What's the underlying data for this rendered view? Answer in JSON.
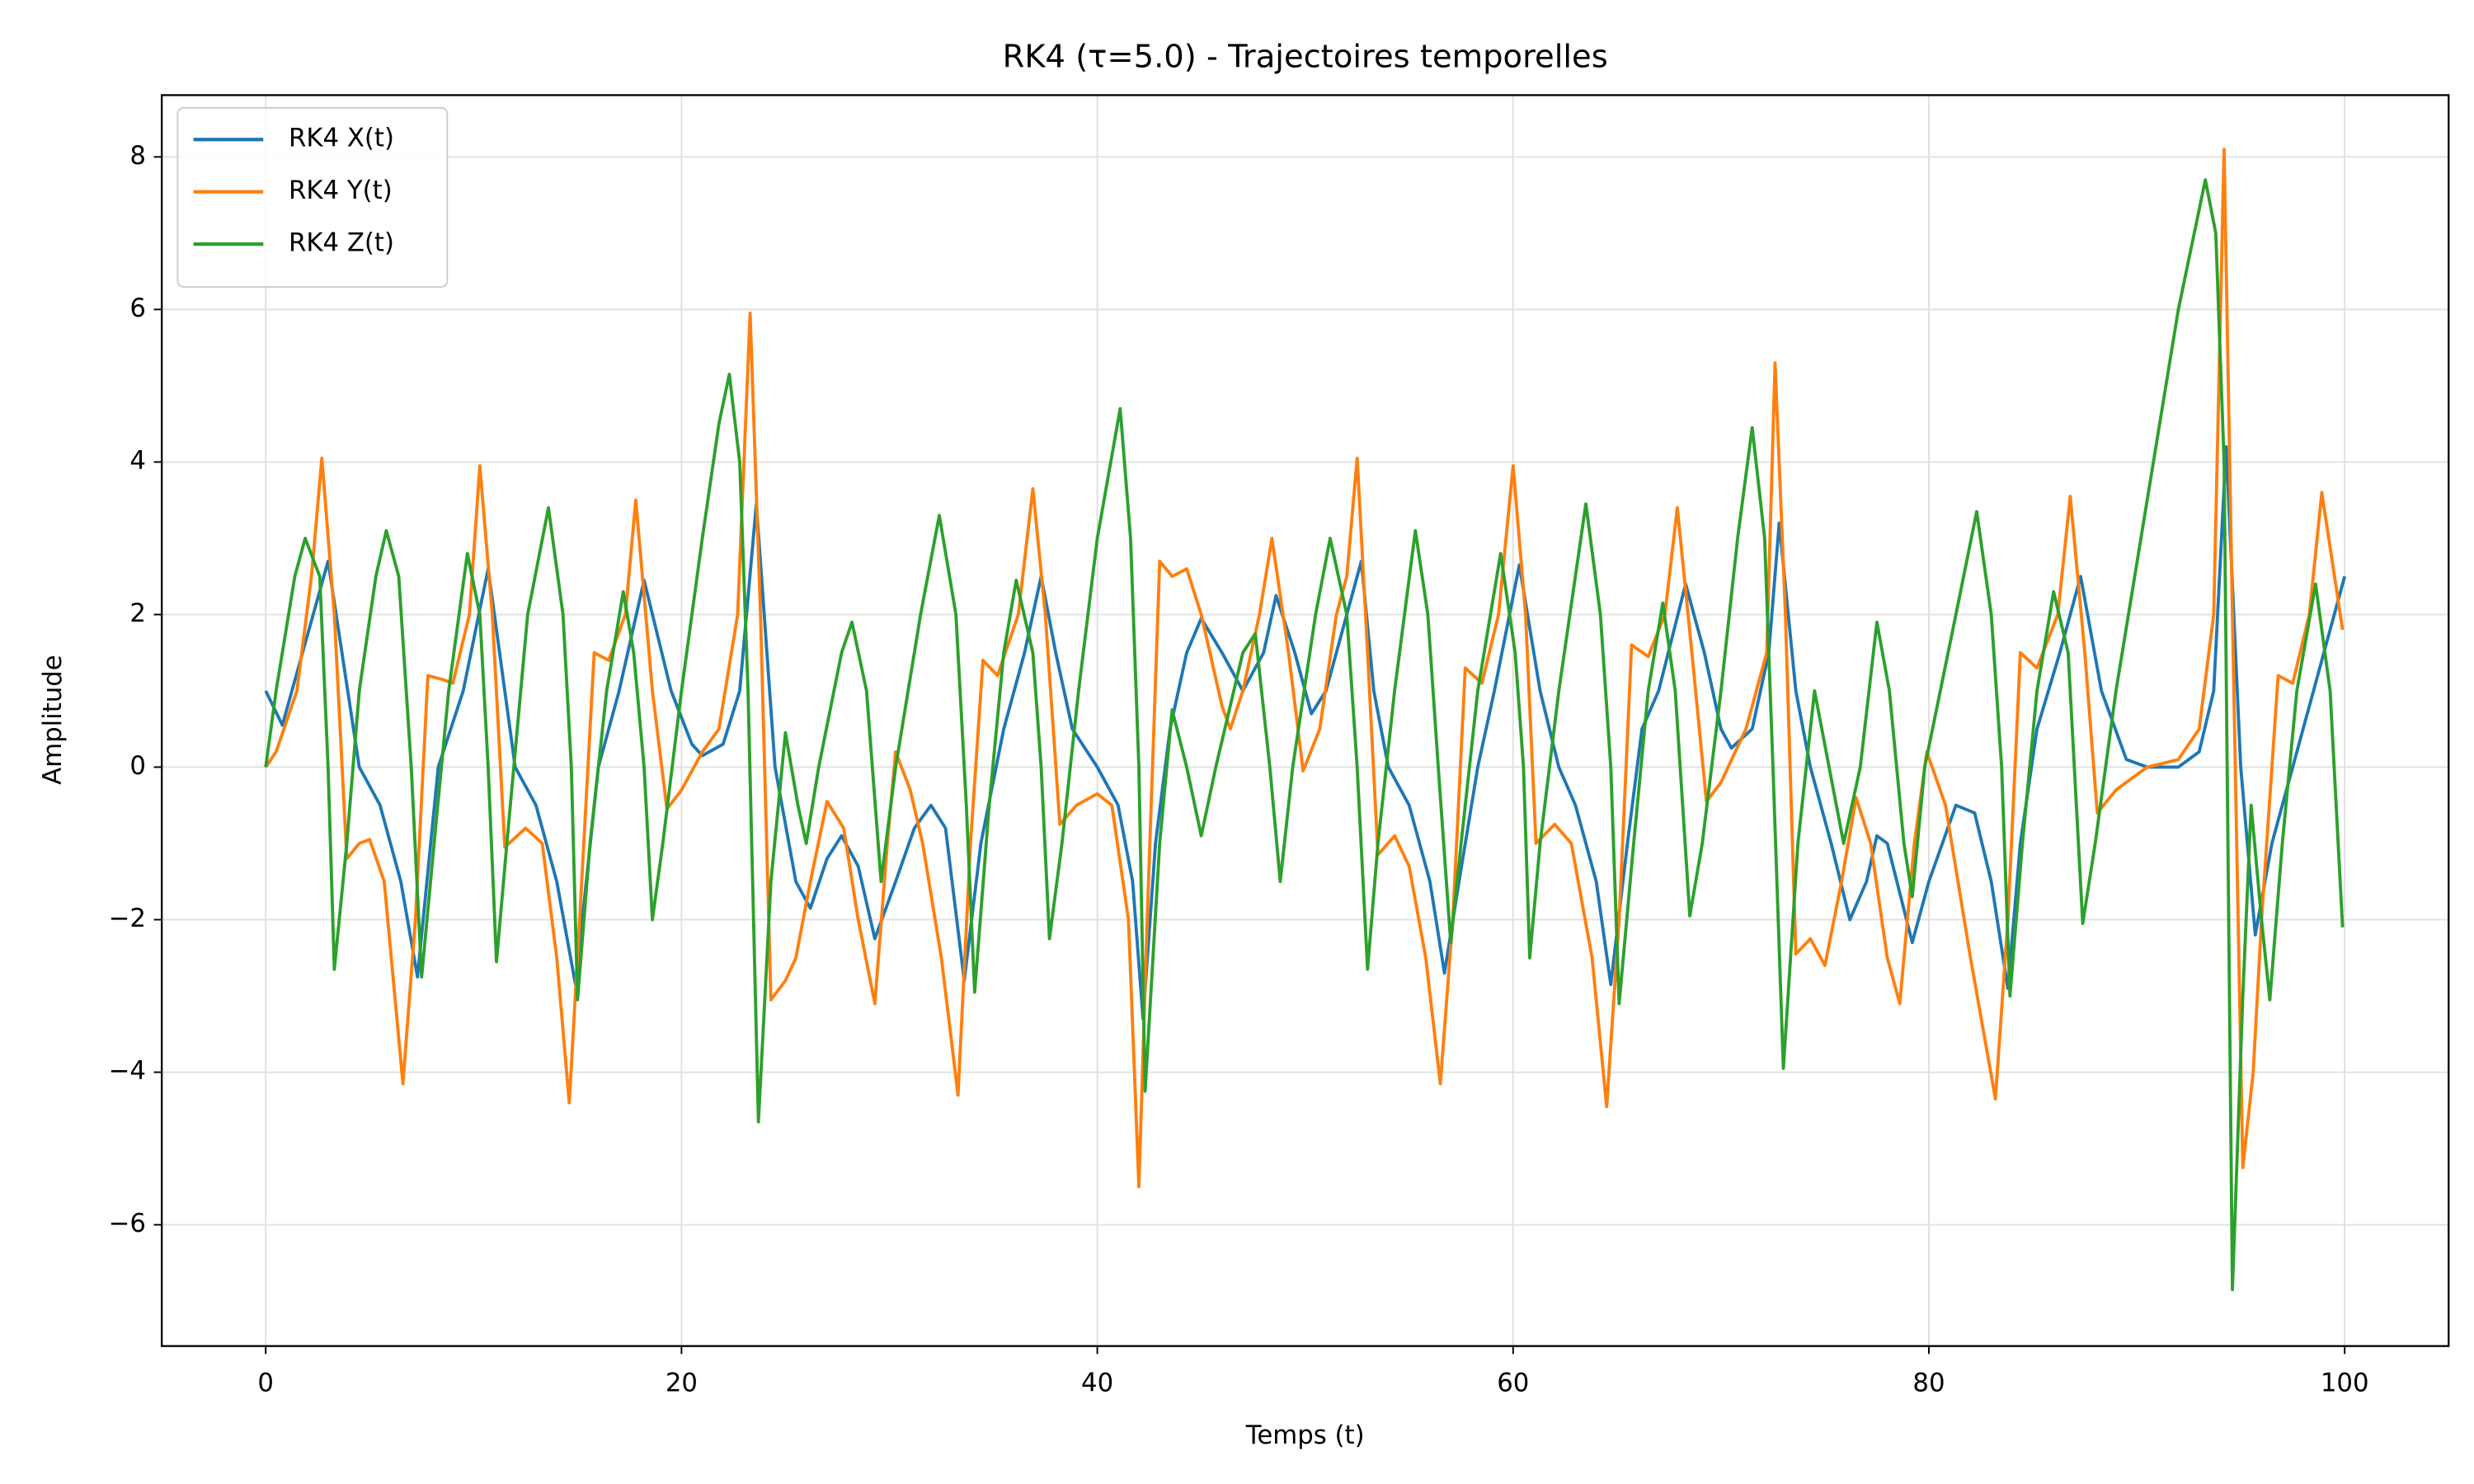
{
  "chart_data": {
    "type": "line",
    "title": "RK4 (τ=5.0) - Trajectoires temporelles",
    "xlabel": "Temps (t)",
    "ylabel": "Amplitude",
    "xlim": [
      -5,
      105
    ],
    "ylim": [
      -7.59,
      8.81
    ],
    "xticks": [
      0,
      20,
      40,
      60,
      80,
      100
    ],
    "yticks": [
      {
        "value": -6,
        "label": "−6"
      },
      {
        "value": -4,
        "label": "−4"
      },
      {
        "value": -2,
        "label": "−2"
      },
      0,
      2,
      4,
      6,
      8
    ],
    "grid": true,
    "legend": "upper left",
    "series": [
      {
        "name": "RK4 X(t)",
        "color": "#1f77b4",
        "x": [
          0,
          0.8,
          3.0,
          4.5,
          5.5,
          6.5,
          7.3,
          8.3,
          9.5,
          10.7,
          12,
          13,
          14,
          14.9,
          16,
          17,
          18.2,
          19.5,
          20.5,
          21,
          22,
          22.8,
          23.6,
          24.5,
          25.5,
          26.2,
          27,
          27.7,
          28.5,
          29.3,
          30.3,
          31.2,
          32,
          32.7,
          33.6,
          34.4,
          35.5,
          36.5,
          37.3,
          38,
          38.8,
          40,
          41,
          41.7,
          42.2,
          42.8,
          43.5,
          44.3,
          45,
          46,
          47,
          48,
          48.6,
          49.5,
          50.3,
          51,
          52,
          52.7,
          53.3,
          54,
          55,
          56,
          56.7,
          57.4,
          58.3,
          59.1,
          60.3,
          61.3,
          62.2,
          63,
          64,
          64.7,
          65.5,
          66.2,
          67,
          68.3,
          69.2,
          70,
          70.5,
          71.5,
          72.3,
          72.8,
          73.6,
          74.3,
          75.3,
          76.2,
          77,
          77.5,
          78,
          79.2,
          80,
          81.3,
          82.2,
          83,
          83.8,
          84.4,
          85.2,
          86.3,
          87.3,
          88.3,
          89.5,
          90.5,
          92,
          93,
          93.7,
          94.3,
          95,
          95.7,
          96.5,
          97.5,
          98.5,
          100
        ],
        "values": [
          1.0,
          0.55,
          2.7,
          0,
          -0.5,
          -1.5,
          -2.75,
          0,
          1,
          2.6,
          0,
          -0.5,
          -1.5,
          -2.85,
          0,
          1,
          2.45,
          1,
          0.3,
          0.15,
          0.3,
          1,
          3.45,
          0,
          -1.5,
          -1.85,
          -1.2,
          -0.9,
          -1.3,
          -2.25,
          -1.5,
          -0.8,
          -0.5,
          -0.8,
          -2.8,
          -1,
          0.5,
          1.5,
          2.5,
          1.5,
          0.5,
          0,
          -0.5,
          -1.5,
          -3.3,
          -1,
          0.5,
          1.5,
          1.95,
          1.5,
          1,
          1.5,
          2.25,
          1.5,
          0.7,
          1,
          2,
          2.7,
          1,
          0,
          -0.5,
          -1.5,
          -2.7,
          -1.5,
          0,
          1,
          2.65,
          1,
          0,
          -0.5,
          -1.5,
          -2.85,
          -1,
          0.5,
          1,
          2.4,
          1.5,
          0.5,
          0.25,
          0.5,
          1.5,
          3.2,
          1,
          0,
          -1,
          -2,
          -1.5,
          -0.9,
          -1,
          -2.3,
          -1.5,
          -0.5,
          -0.6,
          -1.5,
          -2.9,
          -1,
          0.5,
          1.5,
          2.5,
          1,
          0.1,
          0,
          0,
          0.2,
          1,
          4.2,
          0,
          -2.2,
          -1,
          0,
          1,
          2.5
        ]
      },
      {
        "name": "RK4 Y(t)",
        "color": "#ff7f0e",
        "x": [
          0,
          0.5,
          1.5,
          2.2,
          2.7,
          3.3,
          3.9,
          4.5,
          5,
          5.7,
          6.6,
          7.2,
          7.8,
          8.5,
          9,
          9.8,
          10.3,
          10.9,
          11.5,
          12.5,
          13.3,
          14,
          14.6,
          15.1,
          15.8,
          16.5,
          17.3,
          17.8,
          18.6,
          19.3,
          20,
          21,
          21.8,
          22.7,
          23.3,
          23.8,
          24.3,
          25,
          25.5,
          26.2,
          27,
          27.8,
          28.5,
          29.3,
          29.9,
          30.3,
          31,
          31.6,
          32.5,
          33.3,
          33.9,
          34.5,
          35.2,
          36.2,
          36.9,
          37.5,
          38.2,
          39,
          40,
          40.7,
          41.5,
          42,
          42.4,
          43,
          43.6,
          44.3,
          45,
          46,
          46.4,
          47,
          47.8,
          48.4,
          49.2,
          49.9,
          50.7,
          51.5,
          52,
          52.5,
          53,
          53.5,
          54.3,
          55,
          55.8,
          56.5,
          57.1,
          57.7,
          58.5,
          59.3,
          60,
          60.6,
          61.1,
          62,
          62.8,
          63.8,
          64.5,
          65.1,
          65.7,
          66.5,
          67.3,
          67.9,
          68.6,
          69.3,
          70,
          71.2,
          72.2,
          72.6,
          73.1,
          73.6,
          74.3,
          75,
          75.8,
          76.5,
          77.2,
          78,
          78.6,
          79.3,
          79.9,
          80.8,
          82,
          83.2,
          83.8,
          84.4,
          85.2,
          86.2,
          86.8,
          87.5,
          88.1,
          89,
          90.5,
          92,
          93,
          93.7,
          94.2,
          94.6,
          95.1,
          95.6,
          96,
          96.8,
          97.5,
          98.3,
          98.9,
          99.9
        ],
        "values": [
          0,
          0.2,
          1,
          2.5,
          4.05,
          2,
          -1.2,
          -1.0,
          -0.95,
          -1.5,
          -4.15,
          -2,
          1.2,
          1.15,
          1.1,
          2,
          3.95,
          2,
          -1.05,
          -0.8,
          -1,
          -2.5,
          -4.4,
          -2,
          1.5,
          1.4,
          2,
          3.5,
          1,
          -0.55,
          -0.3,
          0.2,
          0.5,
          2,
          5.95,
          2,
          -3.05,
          -2.8,
          -2.5,
          -1.5,
          -0.45,
          -0.8,
          -2,
          -3.1,
          -1,
          0.2,
          -0.3,
          -1,
          -2.5,
          -4.3,
          -1,
          1.4,
          1.2,
          2,
          3.65,
          2,
          -0.75,
          -0.5,
          -0.35,
          -0.5,
          -2,
          -5.5,
          -2,
          2.7,
          2.5,
          2.6,
          2,
          0.8,
          0.5,
          1,
          2,
          3,
          1.5,
          -0.05,
          0.5,
          2,
          2.5,
          4.05,
          1.5,
          -1.15,
          -0.9,
          -1.3,
          -2.5,
          -4.15,
          -2,
          1.3,
          1.1,
          2,
          3.95,
          2,
          -1,
          -0.75,
          -1,
          -2.5,
          -4.45,
          -2,
          1.6,
          1.45,
          2,
          3.4,
          1.5,
          -0.45,
          -0.2,
          0.5,
          1.5,
          5.3,
          2,
          -2.45,
          -2.25,
          -2.6,
          -1.5,
          -0.4,
          -1,
          -2.5,
          -3.1,
          -1,
          0.2,
          -0.5,
          -2.5,
          -4.35,
          -2,
          1.5,
          1.3,
          2,
          3.55,
          1.5,
          -0.6,
          -0.3,
          0,
          0.1,
          0.5,
          2,
          8.1,
          2,
          -5.25,
          -4,
          -2,
          1.2,
          1.1,
          2,
          3.6,
          1.8
        ]
      },
      {
        "name": "RK4 Z(t)",
        "color": "#2ca02c",
        "x": [
          0,
          0.5,
          1.4,
          1.9,
          2.6,
          3.0,
          3.3,
          3.9,
          4.5,
          5.3,
          5.8,
          6.4,
          7,
          7.5,
          8.1,
          8.8,
          9.7,
          10.3,
          10.7,
          11.1,
          11.6,
          12.6,
          13.6,
          14.3,
          14.7,
          15,
          15.6,
          16.4,
          17.2,
          17.7,
          18.2,
          18.6,
          19.1,
          20,
          21,
          21.8,
          22.3,
          22.8,
          23.2,
          23.7,
          24.3,
          25,
          25.6,
          26,
          26.6,
          27.7,
          28.2,
          28.9,
          29.6,
          30.3,
          31.5,
          32.4,
          33.2,
          33.7,
          34.1,
          34.8,
          35.5,
          36.1,
          36.9,
          37.3,
          37.7,
          38.3,
          39.1,
          40,
          41.1,
          41.6,
          42,
          42.3,
          43,
          43.6,
          44.3,
          45,
          45.7,
          47,
          47.6,
          48.3,
          48.8,
          49.4,
          50.5,
          51.2,
          52,
          52.5,
          53,
          53.5,
          54.3,
          55.3,
          55.9,
          56.4,
          57,
          57.5,
          58.3,
          59.4,
          60.1,
          60.5,
          60.8,
          61.3,
          62.2,
          63.5,
          64.2,
          64.7,
          65.1,
          65.8,
          66.5,
          67.2,
          67.8,
          68.5,
          69.1,
          70,
          70.8,
          71.5,
          72.1,
          72.5,
          73,
          73.7,
          74.5,
          75.2,
          75.9,
          76.7,
          77.5,
          78.1,
          78.8,
          79.2,
          79.8,
          81.3,
          82.3,
          83,
          83.5,
          83.9,
          84.5,
          85.2,
          86,
          86.7,
          87.4,
          88,
          89,
          90.8,
          92,
          93.3,
          93.8,
          94.2,
          94.6,
          95.1,
          95.5,
          96,
          96.4,
          97,
          97.7,
          98.6,
          99.3,
          99.9
        ],
        "values": [
          0,
          1,
          2.5,
          3.0,
          2.5,
          0,
          -2.65,
          -1,
          1,
          2.5,
          3.1,
          2.5,
          0,
          -2.75,
          -1,
          1,
          2.8,
          2,
          0,
          -2.55,
          -1,
          2,
          3.4,
          2,
          0,
          -3.05,
          -1,
          1,
          2.3,
          1.5,
          0,
          -2,
          -1,
          1,
          3,
          4.5,
          5.15,
          4,
          1,
          -4.65,
          -1.5,
          0.45,
          -0.5,
          -1,
          0,
          1.5,
          1.9,
          1,
          -1.5,
          0,
          2,
          3.3,
          2,
          -0.5,
          -2.95,
          -0.5,
          1.5,
          2.45,
          1.5,
          0,
          -2.25,
          -1,
          1,
          3,
          4.7,
          3,
          0,
          -4.25,
          -1,
          0.75,
          0,
          -0.9,
          0,
          1.5,
          1.75,
          0,
          -1.5,
          0,
          2,
          3,
          2,
          0,
          -2.65,
          -1,
          1,
          3.1,
          2,
          0,
          -2.3,
          -1,
          1,
          2.8,
          1.5,
          0,
          -2.5,
          -1,
          1,
          3.45,
          2,
          0,
          -3.1,
          -1,
          1,
          2.15,
          1,
          -1.95,
          -1,
          1,
          3,
          4.45,
          3,
          0,
          -3.95,
          -1,
          1,
          0,
          -1,
          0,
          1.9,
          1,
          -1,
          -1.7,
          0,
          2,
          3.35,
          2,
          0,
          -3,
          -1,
          1,
          2.3,
          1.5,
          -2.05,
          -1,
          1,
          4,
          6,
          7.7,
          7,
          4,
          -6.85,
          -3,
          -0.5,
          -2,
          -3.05,
          -1,
          1,
          2.4,
          1,
          -2.1
        ]
      }
    ]
  }
}
